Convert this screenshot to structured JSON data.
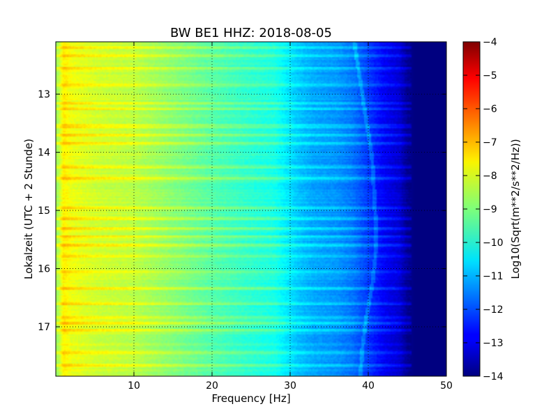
{
  "chart_data": {
    "type": "heatmap",
    "title": "BW BE1 HHZ: 2018-08-05",
    "xlabel": "Frequency [Hz]",
    "ylabel": "Lokalzeit (UTC + 2 Stunde)",
    "xlim": [
      0,
      50
    ],
    "ylim": [
      12.1,
      17.85
    ],
    "y_inverted": true,
    "x_ticks": [
      10,
      20,
      30,
      40,
      50
    ],
    "x_tick_labels": [
      "10",
      "20",
      "30",
      "40",
      "50"
    ],
    "y_ticks": [
      13,
      14,
      15,
      16,
      17
    ],
    "y_tick_labels": [
      "13",
      "14",
      "15",
      "16",
      "17"
    ],
    "grid": true,
    "colorscale": "jet",
    "colorbar": {
      "label": "Log10(Sqrt(m**2/s**2/Hz))",
      "range": [
        -14,
        -4
      ],
      "ticks": [
        -4,
        -5,
        -6,
        -7,
        -8,
        -9,
        -10,
        -11,
        -12,
        -13,
        -14
      ],
      "tick_labels": [
        "−4",
        "−5",
        "−6",
        "−7",
        "−8",
        "−9",
        "−10",
        "−11",
        "−12",
        "−13",
        "−14"
      ]
    },
    "spectral_profile": {
      "frequency_hz": [
        0.3,
        1,
        2,
        5,
        10,
        15,
        20,
        25,
        28,
        31,
        33,
        36,
        38,
        40,
        42,
        44,
        45,
        46,
        50
      ],
      "log_amplitude": [
        -8.6,
        -7.6,
        -7.9,
        -8.2,
        -8.4,
        -8.9,
        -9.4,
        -9.8,
        -10.0,
        -10.8,
        -11.1,
        -11.3,
        -11.6,
        -12.2,
        -12.8,
        -13.2,
        -13.8,
        -14.0,
        -14.0
      ]
    },
    "high_noise_bands_hours": [
      12.2,
      12.35,
      12.55,
      12.85,
      13.15,
      13.25,
      13.55,
      13.7,
      13.85,
      14.25,
      14.45,
      14.95,
      15.15,
      15.3,
      15.45,
      15.6,
      15.8,
      16.05,
      16.35,
      16.6,
      16.85,
      16.95,
      17.05,
      17.45,
      17.65
    ],
    "drifting_line": {
      "hours": [
        12.1,
        12.8,
        13.5,
        14.1,
        14.8,
        15.3,
        15.8,
        16.3,
        16.8,
        17.3,
        17.85
      ],
      "frequency_hz": [
        38.2,
        39.0,
        39.8,
        40.5,
        40.8,
        41.0,
        40.9,
        40.5,
        39.8,
        39.3,
        39.0
      ]
    }
  }
}
